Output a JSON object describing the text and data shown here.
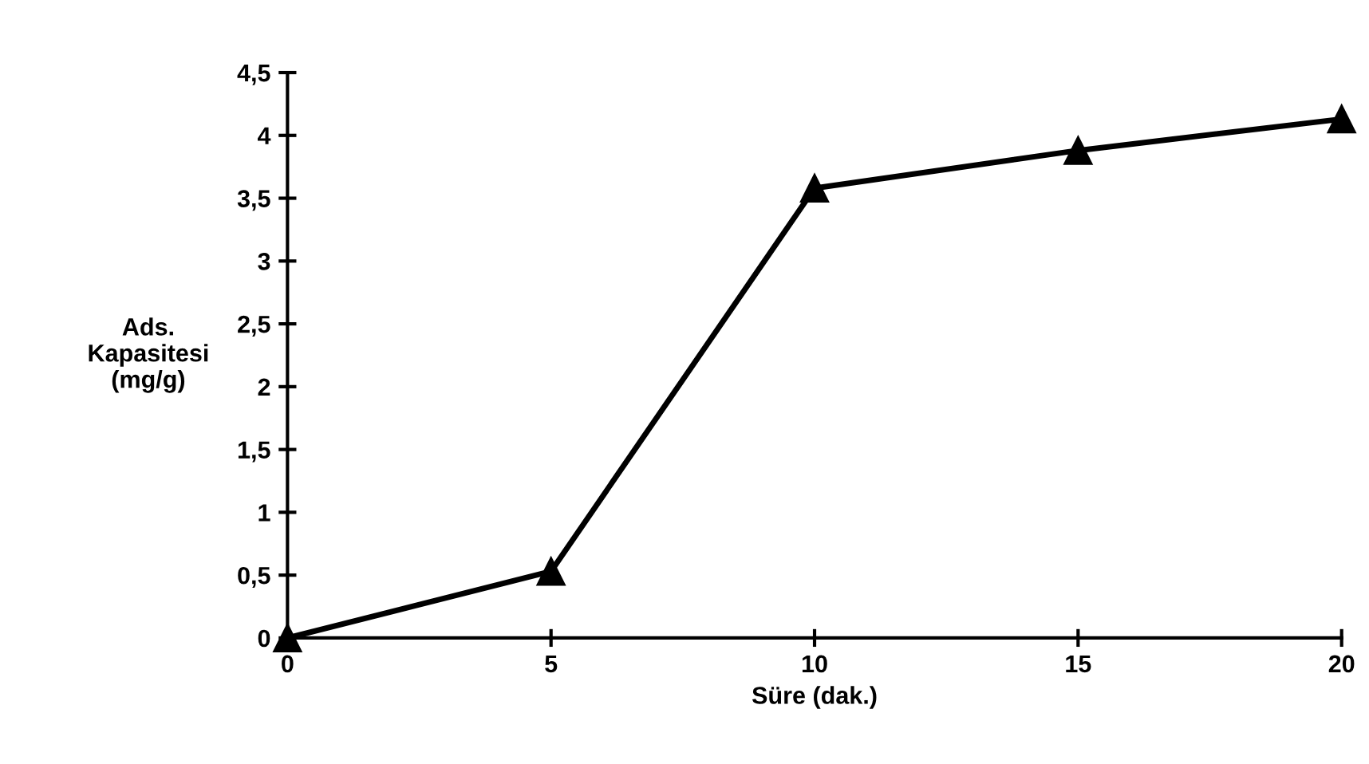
{
  "chart_data": {
    "type": "line",
    "xlabel": "Süre (dak.)",
    "ylabel": "Ads.\nKapasitesi\n(mg/g)",
    "x": [
      0,
      5,
      10,
      15,
      20
    ],
    "series": [
      {
        "color": "#000000",
        "values": [
          0,
          0.53,
          3.58,
          3.88,
          4.13
        ]
      }
    ],
    "xlim": [
      0,
      20
    ],
    "xticks": [
      0,
      5,
      10,
      15,
      20
    ],
    "ylim": [
      0,
      4.5
    ],
    "yticks": [
      0,
      {
        "value": 0.5,
        "label": "0,5"
      },
      1,
      {
        "value": 1.5,
        "label": "1,5"
      },
      2,
      {
        "value": 2.5,
        "label": "2,5"
      },
      3,
      {
        "value": 3.5,
        "label": "3,5"
      },
      4,
      {
        "value": 4.5,
        "label": "4,5"
      }
    ],
    "marker": "triangle",
    "line_style": "solid",
    "grid": false,
    "legend": false
  }
}
